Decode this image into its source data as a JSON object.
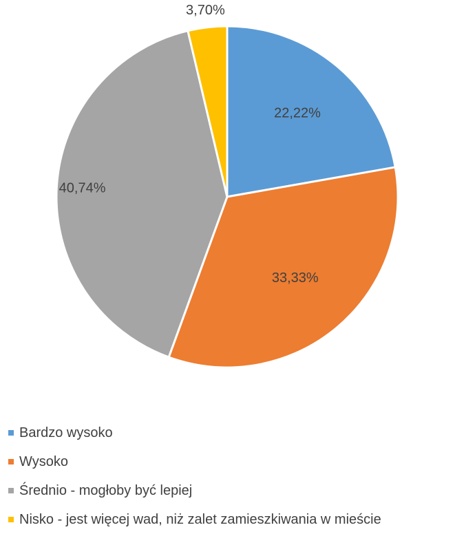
{
  "chart_data": {
    "type": "pie",
    "title": "",
    "slices": [
      {
        "label": "Bardzo wysoko",
        "value": 22.22,
        "display": "22,22%",
        "color": "#5B9BD5"
      },
      {
        "label": "Wysoko",
        "value": 33.33,
        "display": "33,33%",
        "color": "#ED7D31"
      },
      {
        "label": "Średnio - mogłoby być lepiej",
        "value": 40.74,
        "display": "40,74%",
        "color": "#A5A5A5"
      },
      {
        "label": "Nisko - jest więcej wad, niż zalet zamieszkiwania w mieście",
        "value": 3.7,
        "display": "3,70%",
        "color": "#FFC000"
      }
    ],
    "legend_position": "bottom-left",
    "start_angle": "12 o'clock",
    "direction": "clockwise"
  }
}
